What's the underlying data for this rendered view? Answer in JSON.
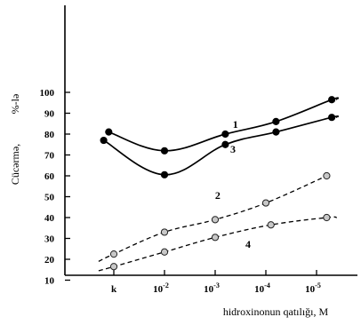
{
  "chart_data": {
    "type": "line",
    "xlabel": "hidroxinonun qatılığı, M",
    "ylabel_left": "Cücərmə,",
    "ylabel_right": "%-lə",
    "categories": [
      "k",
      "10",
      "10",
      "10",
      "10"
    ],
    "category_exponents": [
      "",
      "-2",
      "-3",
      "-4",
      "-5"
    ],
    "ylim": [
      0,
      105
    ],
    "yticks": [
      10,
      20,
      30,
      40,
      50,
      60,
      70,
      80,
      90,
      100
    ],
    "grid": false,
    "series": [
      {
        "name": "1",
        "style": "solid",
        "marker": "filled",
        "points": [
          [
            -0.1,
            81.0
          ],
          [
            1,
            72.0
          ],
          [
            2.2,
            80.0
          ],
          [
            3.2,
            86.0
          ],
          [
            4.3,
            96.5
          ],
          [
            4.4,
            96.5
          ]
        ],
        "markers": [
          [
            -0.1,
            81.0
          ],
          [
            1,
            72.0
          ],
          [
            2.2,
            80.0
          ],
          [
            3.2,
            86.0
          ],
          [
            4.3,
            96.5
          ]
        ],
        "label_at": [
          2.4,
          83.0
        ]
      },
      {
        "name": "3",
        "style": "solid",
        "marker": "filled",
        "points": [
          [
            -0.2,
            77.0
          ],
          [
            1,
            60.5
          ],
          [
            2.2,
            75.0
          ],
          [
            3.2,
            81.0
          ],
          [
            4.3,
            88.0
          ],
          [
            4.4,
            88.0
          ]
        ],
        "markers": [
          [
            -0.2,
            77.0
          ],
          [
            1,
            60.5
          ],
          [
            2.2,
            75.0
          ],
          [
            3.2,
            81.0
          ],
          [
            4.3,
            88.0
          ]
        ],
        "label_at": [
          2.35,
          71.0
        ]
      },
      {
        "name": "2",
        "style": "dashed",
        "marker": "hollow",
        "points": [
          [
            -0.3,
            19.0
          ],
          [
            0.0,
            22.5
          ],
          [
            1,
            33.0
          ],
          [
            2.0,
            39.0
          ],
          [
            3.0,
            47.0
          ],
          [
            4.2,
            60.0
          ]
        ],
        "markers": [
          [
            0.0,
            22.5
          ],
          [
            1,
            33.0
          ],
          [
            2.0,
            39.0
          ],
          [
            3.0,
            47.0
          ],
          [
            4.2,
            60.0
          ]
        ],
        "label_at": [
          2.05,
          49.0
        ]
      },
      {
        "name": "4",
        "style": "dashed",
        "marker": "hollow",
        "points": [
          [
            -0.3,
            14.5
          ],
          [
            0.0,
            16.5
          ],
          [
            1,
            23.5
          ],
          [
            2.0,
            30.5
          ],
          [
            3.1,
            36.5
          ],
          [
            4.2,
            40.0
          ],
          [
            4.4,
            40.0
          ]
        ],
        "markers": [
          [
            0.0,
            16.5
          ],
          [
            1,
            23.5
          ],
          [
            2.0,
            30.5
          ],
          [
            3.1,
            36.5
          ],
          [
            4.2,
            40.0
          ]
        ],
        "label_at": [
          2.65,
          25.5
        ]
      }
    ]
  }
}
